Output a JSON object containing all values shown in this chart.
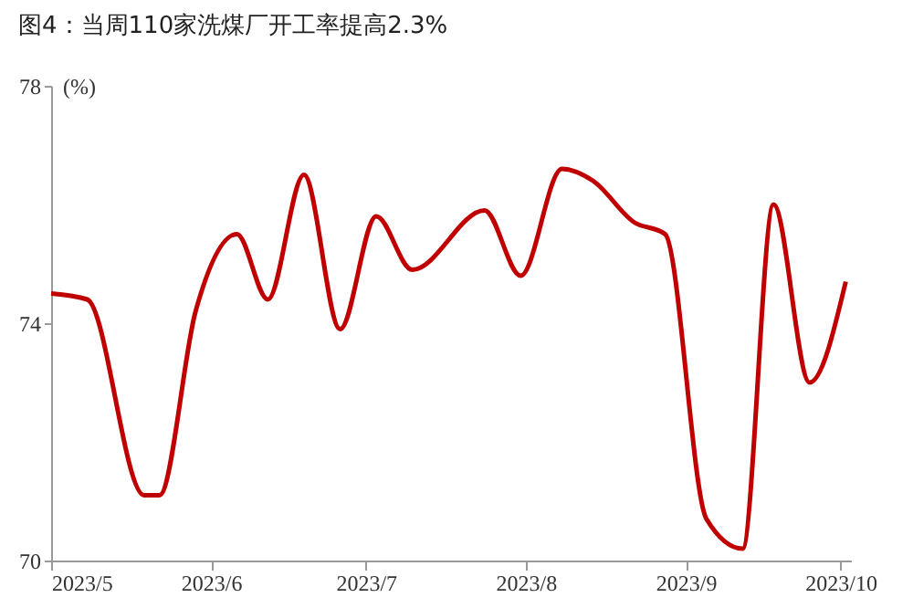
{
  "chart_data": {
    "type": "line",
    "title": "图4：当周110家洗煤厂开工率提高2.3%",
    "ylabel": "(%)",
    "x": [
      "2023-05-01",
      "2023-05-08",
      "2023-05-19",
      "2023-05-22",
      "2023-05-29",
      "2023-06-06",
      "2023-06-12",
      "2023-06-19",
      "2023-06-26",
      "2023-07-03",
      "2023-07-10",
      "2023-07-24",
      "2023-07-31",
      "2023-08-08",
      "2023-08-14",
      "2023-08-22",
      "2023-08-28",
      "2023-09-05",
      "2023-09-12",
      "2023-09-18",
      "2023-09-25",
      "2023-10-02"
    ],
    "series": [
      {
        "color": "#c00000",
        "values": [
          74.5,
          74.4,
          71.1,
          71.1,
          74.2,
          75.5,
          74.4,
          76.5,
          73.9,
          75.8,
          74.9,
          75.9,
          74.8,
          76.6,
          76.4,
          75.7,
          75.5,
          70.7,
          70.2,
          76.0,
          73.0,
          74.7
        ]
      }
    ],
    "xlim": [
      "2023-05-01",
      "2023-10-03"
    ],
    "xticks": [
      {
        "value": "2023-05-01",
        "label": "2023/5"
      },
      {
        "value": "2023-06-01",
        "label": "2023/6"
      },
      {
        "value": "2023-07-01",
        "label": "2023/7"
      },
      {
        "value": "2023-08-01",
        "label": "2023/8"
      },
      {
        "value": "2023-09-01",
        "label": "2023/9"
      },
      {
        "value": "2023-10-01",
        "label": "2023/10"
      }
    ],
    "ylim": [
      70,
      78
    ],
    "yticks": [
      70,
      74,
      78
    ],
    "grid": false,
    "legend": false,
    "marker": "none",
    "line_style": "solid"
  }
}
